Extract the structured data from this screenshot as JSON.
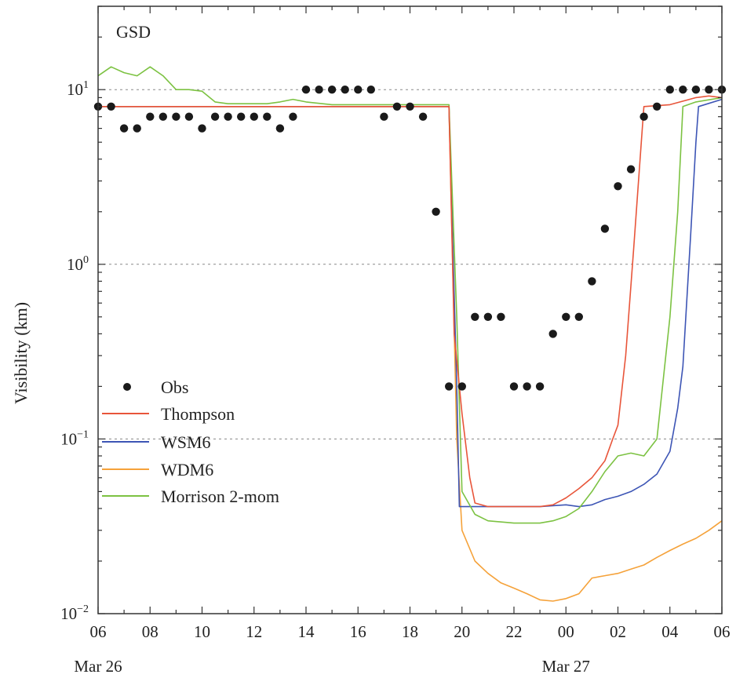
{
  "chart_data": {
    "type": "line",
    "panel_label": "GSD",
    "ylabel": "Visibility (km)",
    "xlabel": "",
    "yscale": "log",
    "ylim": [
      0.01,
      30
    ],
    "xlim": [
      0,
      24
    ],
    "grid": "dashed horizontal at 10^-1, 10^0, 10^1",
    "legend_position": "left-center",
    "x_ticks": [
      {
        "x": 0,
        "label": "06"
      },
      {
        "x": 2,
        "label": "08"
      },
      {
        "x": 4,
        "label": "10"
      },
      {
        "x": 6,
        "label": "12"
      },
      {
        "x": 8,
        "label": "14"
      },
      {
        "x": 10,
        "label": "16"
      },
      {
        "x": 12,
        "label": "18"
      },
      {
        "x": 14,
        "label": "20"
      },
      {
        "x": 16,
        "label": "22"
      },
      {
        "x": 18,
        "label": "00"
      },
      {
        "x": 20,
        "label": "02"
      },
      {
        "x": 22,
        "label": "04"
      },
      {
        "x": 24,
        "label": "06"
      }
    ],
    "date_labels": [
      {
        "x": 0,
        "label": "Mar 26"
      },
      {
        "x": 18,
        "label": "Mar 27"
      }
    ],
    "y_ticks": [
      {
        "value": 0.01,
        "base": "10",
        "exp": "−2"
      },
      {
        "value": 0.1,
        "base": "10",
        "exp": "−1"
      },
      {
        "value": 1,
        "base": "10",
        "exp": "0"
      },
      {
        "value": 10,
        "base": "10",
        "exp": "1"
      }
    ],
    "obs": {
      "name": "Obs",
      "color": "#1a1a1a",
      "points": [
        [
          0,
          8
        ],
        [
          0.5,
          8
        ],
        [
          1,
          6
        ],
        [
          1.5,
          6
        ],
        [
          2,
          7
        ],
        [
          2.5,
          7
        ],
        [
          3,
          7
        ],
        [
          3.5,
          7
        ],
        [
          4,
          6
        ],
        [
          4.5,
          7
        ],
        [
          5,
          7
        ],
        [
          5.5,
          7
        ],
        [
          6,
          7
        ],
        [
          6.5,
          7
        ],
        [
          7,
          6
        ],
        [
          7.5,
          7
        ],
        [
          8,
          10
        ],
        [
          8.5,
          10
        ],
        [
          9,
          10
        ],
        [
          9.5,
          10
        ],
        [
          10,
          10
        ],
        [
          10.5,
          10
        ],
        [
          11,
          7
        ],
        [
          11.5,
          8
        ],
        [
          12,
          8
        ],
        [
          12.5,
          7
        ],
        [
          13,
          2
        ],
        [
          13.5,
          0.2
        ],
        [
          14,
          0.2
        ],
        [
          14.5,
          0.5
        ],
        [
          15,
          0.5
        ],
        [
          15.5,
          0.5
        ],
        [
          16,
          0.2
        ],
        [
          16.5,
          0.2
        ],
        [
          17,
          0.2
        ],
        [
          17.5,
          0.4
        ],
        [
          18,
          0.5
        ],
        [
          18.5,
          0.5
        ],
        [
          19,
          0.8
        ],
        [
          19.5,
          1.6
        ],
        [
          20,
          2.8
        ],
        [
          20.5,
          3.5
        ],
        [
          21,
          7
        ],
        [
          21.5,
          8
        ],
        [
          22,
          10
        ],
        [
          22.5,
          10
        ],
        [
          23,
          10
        ],
        [
          23.5,
          10
        ],
        [
          24,
          10
        ]
      ]
    },
    "series": [
      {
        "name": "Thompson",
        "color": "#e8553a",
        "points": [
          [
            0,
            8
          ],
          [
            13.5,
            8
          ],
          [
            13.7,
            0.4
          ],
          [
            14,
            0.14
          ],
          [
            14.3,
            0.06
          ],
          [
            14.5,
            0.043
          ],
          [
            15,
            0.041
          ],
          [
            16,
            0.041
          ],
          [
            17,
            0.041
          ],
          [
            17.5,
            0.042
          ],
          [
            18,
            0.046
          ],
          [
            18.5,
            0.052
          ],
          [
            19,
            0.06
          ],
          [
            19.5,
            0.075
          ],
          [
            19.8,
            0.1
          ],
          [
            20,
            0.12
          ],
          [
            20.3,
            0.3
          ],
          [
            20.6,
            1.2
          ],
          [
            20.9,
            5
          ],
          [
            21,
            8
          ],
          [
            22,
            8.2
          ],
          [
            23,
            9
          ],
          [
            23.5,
            9.2
          ],
          [
            24,
            9
          ]
        ]
      },
      {
        "name": "WSM6",
        "color": "#3d55b5",
        "points": [
          [
            0,
            8
          ],
          [
            13.5,
            8
          ],
          [
            13.8,
            0.2
          ],
          [
            13.9,
            0.041
          ],
          [
            14,
            0.041
          ],
          [
            16,
            0.041
          ],
          [
            17,
            0.041
          ],
          [
            18,
            0.042
          ],
          [
            18.5,
            0.041
          ],
          [
            19,
            0.042
          ],
          [
            19.5,
            0.045
          ],
          [
            20,
            0.047
          ],
          [
            20.5,
            0.05
          ],
          [
            21,
            0.055
          ],
          [
            21.5,
            0.063
          ],
          [
            22,
            0.085
          ],
          [
            22.3,
            0.15
          ],
          [
            22.5,
            0.26
          ],
          [
            22.8,
            1.5
          ],
          [
            23,
            5
          ],
          [
            23.1,
            8
          ],
          [
            24,
            8.8
          ]
        ]
      },
      {
        "name": "WDM6",
        "color": "#f5a23a",
        "points": [
          [
            0,
            8
          ],
          [
            13.5,
            8
          ],
          [
            13.8,
            0.1
          ],
          [
            14,
            0.03
          ],
          [
            14.5,
            0.02
          ],
          [
            15,
            0.017
          ],
          [
            15.5,
            0.015
          ],
          [
            16,
            0.014
          ],
          [
            16.5,
            0.013
          ],
          [
            17,
            0.012
          ],
          [
            17.5,
            0.0118
          ],
          [
            18,
            0.0122
          ],
          [
            18.5,
            0.013
          ],
          [
            19,
            0.016
          ],
          [
            19.5,
            0.0165
          ],
          [
            20,
            0.017
          ],
          [
            20.5,
            0.018
          ],
          [
            21,
            0.019
          ],
          [
            21.5,
            0.021
          ],
          [
            22,
            0.023
          ],
          [
            22.5,
            0.025
          ],
          [
            23,
            0.027
          ],
          [
            23.5,
            0.03
          ],
          [
            24,
            0.034
          ]
        ]
      },
      {
        "name": "Morrison 2-mom",
        "color": "#7cc242",
        "points": [
          [
            0,
            12
          ],
          [
            0.5,
            13.5
          ],
          [
            1,
            12.5
          ],
          [
            1.5,
            12
          ],
          [
            2,
            13.5
          ],
          [
            2.5,
            12
          ],
          [
            3,
            10
          ],
          [
            3.5,
            10
          ],
          [
            4,
            9.8
          ],
          [
            4.5,
            8.5
          ],
          [
            5,
            8.3
          ],
          [
            6,
            8.3
          ],
          [
            6.5,
            8.3
          ],
          [
            7,
            8.5
          ],
          [
            7.5,
            8.8
          ],
          [
            8,
            8.5
          ],
          [
            9,
            8.2
          ],
          [
            13.5,
            8.2
          ],
          [
            13.8,
            0.5
          ],
          [
            14,
            0.05
          ],
          [
            14.5,
            0.037
          ],
          [
            15,
            0.034
          ],
          [
            16,
            0.033
          ],
          [
            17,
            0.033
          ],
          [
            17.5,
            0.034
          ],
          [
            18,
            0.036
          ],
          [
            18.5,
            0.04
          ],
          [
            19,
            0.05
          ],
          [
            19.5,
            0.065
          ],
          [
            20,
            0.08
          ],
          [
            20.5,
            0.083
          ],
          [
            21,
            0.08
          ],
          [
            21.5,
            0.1
          ],
          [
            22,
            0.5
          ],
          [
            22.3,
            2
          ],
          [
            22.5,
            8
          ],
          [
            23,
            8.5
          ],
          [
            24,
            9
          ]
        ]
      }
    ]
  }
}
